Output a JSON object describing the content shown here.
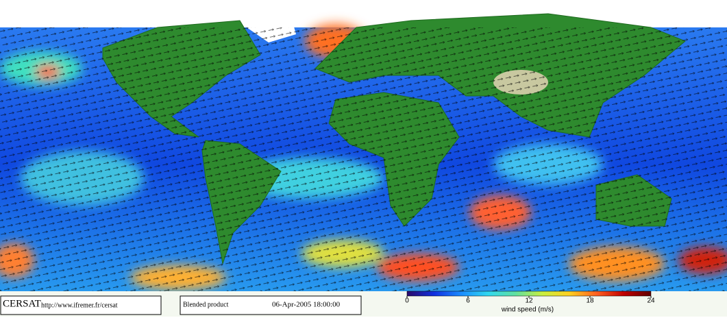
{
  "footer": {
    "logo": "CERSAT",
    "url": "http://www.ifremer.fr/cersat",
    "product": "Blended product",
    "datetime": "06-Apr-2005 18:00:00"
  },
  "colorbar": {
    "label": "wind speed (m/s)",
    "lim": [
      0,
      24
    ],
    "ticks": [
      0,
      6,
      12,
      18,
      24
    ],
    "colors": [
      "#2a0a6a",
      "#1030e0",
      "#1a8cff",
      "#30d8f0",
      "#60e0a0",
      "#c8f040",
      "#ffd020",
      "#ff6020",
      "#c00000",
      "#600000"
    ]
  }
}
